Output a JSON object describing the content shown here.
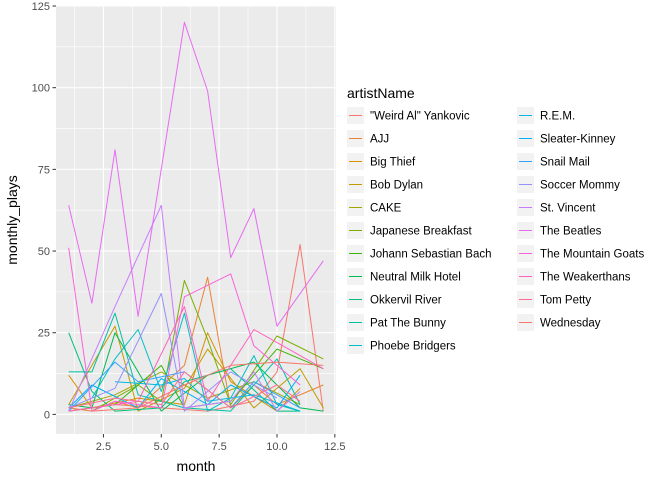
{
  "chart_data": {
    "type": "line",
    "title": "",
    "xlabel": "month",
    "ylabel": "monthly_plays",
    "xlim": [
      0.45,
      12.55
    ],
    "ylim": [
      -6,
      125
    ],
    "x_ticks": [
      2.5,
      5.0,
      7.5,
      10.0,
      12.5
    ],
    "x_tick_labels": [
      "2.5",
      "5.0",
      "7.5",
      "10.0",
      "12.5"
    ],
    "y_ticks": [
      0,
      25,
      50,
      75,
      100,
      125
    ],
    "y_tick_labels": [
      "0",
      "25",
      "50",
      "75",
      "100",
      "125"
    ],
    "grid": true,
    "legend": {
      "title": "artistName",
      "placement": "right",
      "columns": 2
    },
    "series": [
      {
        "name": "\"Weird Al\" Yankovic",
        "color": "#F8766D",
        "points": [
          [
            1,
            1
          ],
          [
            3,
            3
          ],
          [
            5,
            2
          ],
          [
            7,
            1
          ],
          [
            9,
            4
          ],
          [
            10,
            13
          ],
          [
            11,
            52
          ],
          [
            12,
            1
          ]
        ]
      },
      {
        "name": "AJJ",
        "color": "#EA8331",
        "points": [
          [
            1,
            2
          ],
          [
            2,
            1
          ],
          [
            3,
            4
          ],
          [
            4,
            2
          ],
          [
            6,
            15
          ],
          [
            7,
            42
          ],
          [
            8,
            2
          ],
          [
            9,
            9
          ],
          [
            10,
            3
          ],
          [
            12,
            9
          ]
        ]
      },
      {
        "name": "Big Thief",
        "color": "#D89000",
        "points": [
          [
            1,
            12
          ],
          [
            2,
            2
          ],
          [
            4,
            5
          ],
          [
            6,
            3
          ],
          [
            7,
            25
          ],
          [
            8,
            10
          ],
          [
            10,
            1
          ],
          [
            11,
            8
          ]
        ]
      },
      {
        "name": "Bob Dylan",
        "color": "#C09B00",
        "points": [
          [
            1,
            3
          ],
          [
            3,
            27
          ],
          [
            4,
            1
          ],
          [
            6,
            8
          ],
          [
            7,
            20
          ],
          [
            9,
            2
          ],
          [
            11,
            14
          ],
          [
            12,
            2
          ]
        ]
      },
      {
        "name": "CAKE",
        "color": "#A3A500",
        "points": [
          [
            1,
            2
          ],
          [
            3,
            6
          ],
          [
            5,
            13
          ],
          [
            7,
            5
          ],
          [
            9,
            10
          ],
          [
            11,
            3
          ]
        ]
      },
      {
        "name": "Japanese Breakfast",
        "color": "#7CAE00",
        "points": [
          [
            2,
            1
          ],
          [
            4,
            9
          ],
          [
            5,
            4
          ],
          [
            6,
            41
          ],
          [
            7,
            23
          ],
          [
            8,
            3
          ],
          [
            10,
            24
          ],
          [
            12,
            17
          ]
        ]
      },
      {
        "name": "Johann Sebastian Bach",
        "color": "#39B600",
        "points": [
          [
            1,
            1
          ],
          [
            3,
            3
          ],
          [
            5,
            15
          ],
          [
            6,
            2
          ],
          [
            8,
            4
          ],
          [
            10,
            20
          ],
          [
            12,
            14
          ]
        ]
      },
      {
        "name": "Neutral Milk Hotel",
        "color": "#00BB4E",
        "points": [
          [
            1,
            3
          ],
          [
            2,
            2
          ],
          [
            3,
            25
          ],
          [
            5,
            1
          ],
          [
            7,
            12
          ],
          [
            9,
            16
          ],
          [
            11,
            2
          ],
          [
            12,
            1
          ]
        ]
      },
      {
        "name": "Okkervil River",
        "color": "#00BF7D",
        "points": [
          [
            1,
            25
          ],
          [
            2,
            7
          ],
          [
            3,
            1
          ],
          [
            5,
            2
          ],
          [
            6,
            10
          ],
          [
            8,
            14
          ],
          [
            10,
            1
          ],
          [
            11,
            1
          ]
        ]
      },
      {
        "name": "Pat The Bunny",
        "color": "#00C1A3",
        "points": [
          [
            1,
            13
          ],
          [
            2,
            13
          ],
          [
            3,
            31
          ],
          [
            4,
            6
          ],
          [
            6,
            2
          ],
          [
            8,
            1
          ],
          [
            10,
            17
          ],
          [
            11,
            3
          ]
        ]
      },
      {
        "name": "Phoebe Bridgers",
        "color": "#00BFC4",
        "points": [
          [
            2,
            5
          ],
          [
            3,
            17
          ],
          [
            4,
            26
          ],
          [
            5,
            7
          ],
          [
            6,
            31
          ],
          [
            7,
            1
          ],
          [
            8,
            5
          ],
          [
            9,
            18
          ],
          [
            10,
            3
          ],
          [
            11,
            1
          ]
        ]
      },
      {
        "name": "R.E.M.",
        "color": "#00BAE0",
        "points": [
          [
            3,
            10
          ],
          [
            5,
            9
          ],
          [
            6,
            11
          ],
          [
            7,
            4
          ],
          [
            9,
            6
          ],
          [
            11,
            1
          ]
        ]
      },
      {
        "name": "Sleater-Kinney",
        "color": "#00B0F6",
        "points": [
          [
            1,
            2
          ],
          [
            2,
            9
          ],
          [
            4,
            2
          ],
          [
            5,
            11
          ],
          [
            7,
            3
          ],
          [
            8,
            9
          ],
          [
            10,
            2
          ],
          [
            11,
            12
          ]
        ]
      },
      {
        "name": "Snail Mail",
        "color": "#35A2FF",
        "points": [
          [
            1,
            1
          ],
          [
            3,
            16
          ],
          [
            4,
            10
          ],
          [
            6,
            13
          ],
          [
            8,
            2
          ],
          [
            9,
            10
          ],
          [
            11,
            2
          ]
        ]
      },
      {
        "name": "Soccer Mommy",
        "color": "#9590FF",
        "points": [
          [
            1,
            2
          ],
          [
            3,
            8
          ],
          [
            5,
            37
          ],
          [
            6,
            1
          ],
          [
            8,
            13
          ],
          [
            10,
            5
          ]
        ]
      },
      {
        "name": "St. Vincent",
        "color": "#C77CFF",
        "points": [
          [
            1,
            1
          ],
          [
            3,
            33
          ],
          [
            5,
            64
          ],
          [
            6,
            2
          ],
          [
            8,
            4
          ],
          [
            9,
            13
          ],
          [
            10,
            1
          ],
          [
            11,
            7
          ]
        ]
      },
      {
        "name": "The Beatles",
        "color": "#E76BF3",
        "points": [
          [
            1,
            64
          ],
          [
            2,
            34
          ],
          [
            3,
            81
          ],
          [
            4,
            30
          ],
          [
            6,
            120
          ],
          [
            7,
            99
          ],
          [
            8,
            48
          ],
          [
            9,
            63
          ],
          [
            10,
            27
          ],
          [
            12,
            47
          ]
        ]
      },
      {
        "name": "The Mountain Goats",
        "color": "#FA62DB",
        "points": [
          [
            1,
            51
          ],
          [
            2,
            1
          ],
          [
            3,
            4
          ],
          [
            5,
            2
          ],
          [
            6,
            36
          ],
          [
            8,
            43
          ],
          [
            9,
            21
          ],
          [
            11,
            9
          ]
        ]
      },
      {
        "name": "The Weakerthans",
        "color": "#FF62BC",
        "points": [
          [
            1,
            1
          ],
          [
            4,
            4
          ],
          [
            6,
            33
          ],
          [
            7,
            4
          ],
          [
            9,
            26
          ],
          [
            11,
            18
          ],
          [
            12,
            14
          ]
        ]
      },
      {
        "name": "Tom Petty",
        "color": "#FF6C91",
        "points": [
          [
            1,
            2
          ],
          [
            3,
            5
          ],
          [
            5,
            3
          ],
          [
            6,
            13
          ],
          [
            8,
            2
          ],
          [
            10,
            9
          ],
          [
            11,
            4
          ]
        ]
      },
      {
        "name": "Wednesday",
        "color": "#F8766D",
        "points": [
          [
            2,
            1
          ],
          [
            4,
            2
          ],
          [
            6,
            9
          ],
          [
            8,
            15
          ],
          [
            10,
            16
          ],
          [
            12,
            15
          ]
        ]
      }
    ]
  }
}
